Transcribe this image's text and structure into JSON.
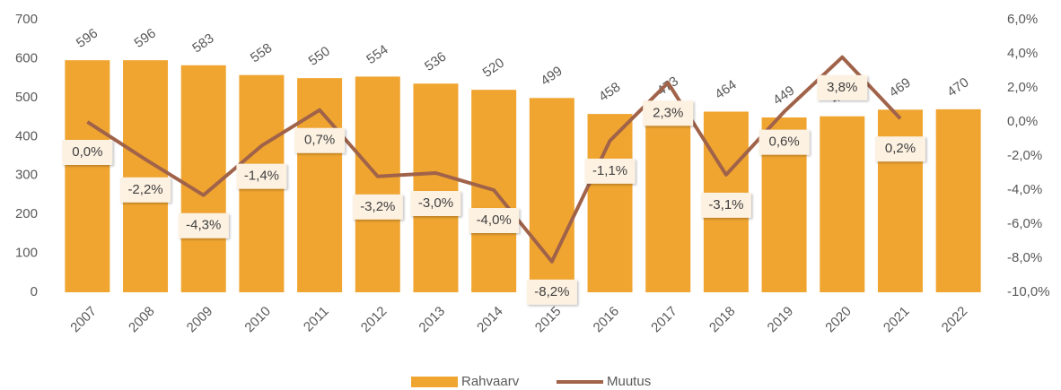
{
  "chart_data": {
    "type": "bar-line",
    "categories": [
      "2007",
      "2008",
      "2009",
      "2010",
      "2011",
      "2012",
      "2013",
      "2014",
      "2015",
      "2016",
      "2017",
      "2018",
      "2019",
      "2020",
      "2021",
      "2022"
    ],
    "series": [
      {
        "name": "Rahvaarv",
        "type": "bar",
        "color": "#f0a530",
        "values": [
          596,
          596,
          583,
          558,
          550,
          554,
          536,
          520,
          499,
          458,
          473,
          464,
          449,
          452,
          469,
          470
        ]
      },
      {
        "name": "Muutus",
        "type": "line",
        "axis": "y2",
        "color": "#a0634a",
        "values": [
          0.0,
          -2.2,
          -4.3,
          -1.4,
          0.7,
          -3.2,
          -3.0,
          -4.0,
          -8.2,
          -1.1,
          2.3,
          -3.1,
          0.6,
          3.8,
          0.2,
          null
        ],
        "value_labels": [
          "0,0%",
          "-2,2%",
          "-4,3%",
          "-1,4%",
          "0,7%",
          "-3,2%",
          "-3,0%",
          "-4,0%",
          "-8,2%",
          "-1,1%",
          "2,3%",
          "-3,1%",
          "0,6%",
          "3,8%",
          "0,2%",
          null
        ]
      }
    ],
    "ylim": [
      0,
      700
    ],
    "yticks": [
      0,
      100,
      200,
      300,
      400,
      500,
      600,
      700
    ],
    "y2lim": [
      -10,
      6
    ],
    "y2ticks": [
      {
        "value": -10,
        "label": "-10,0%"
      },
      {
        "value": -8,
        "label": "-8,0%"
      },
      {
        "value": -6,
        "label": "-6,0%"
      },
      {
        "value": -4,
        "label": "-4,0%"
      },
      {
        "value": -2,
        "label": "-2,0%"
      },
      {
        "value": 0,
        "label": "0,0%"
      },
      {
        "value": 2,
        "label": "2,0%"
      },
      {
        "value": 4,
        "label": "4,0%"
      },
      {
        "value": 6,
        "label": "6,0%"
      }
    ],
    "grid": false,
    "legend": "bottom"
  }
}
